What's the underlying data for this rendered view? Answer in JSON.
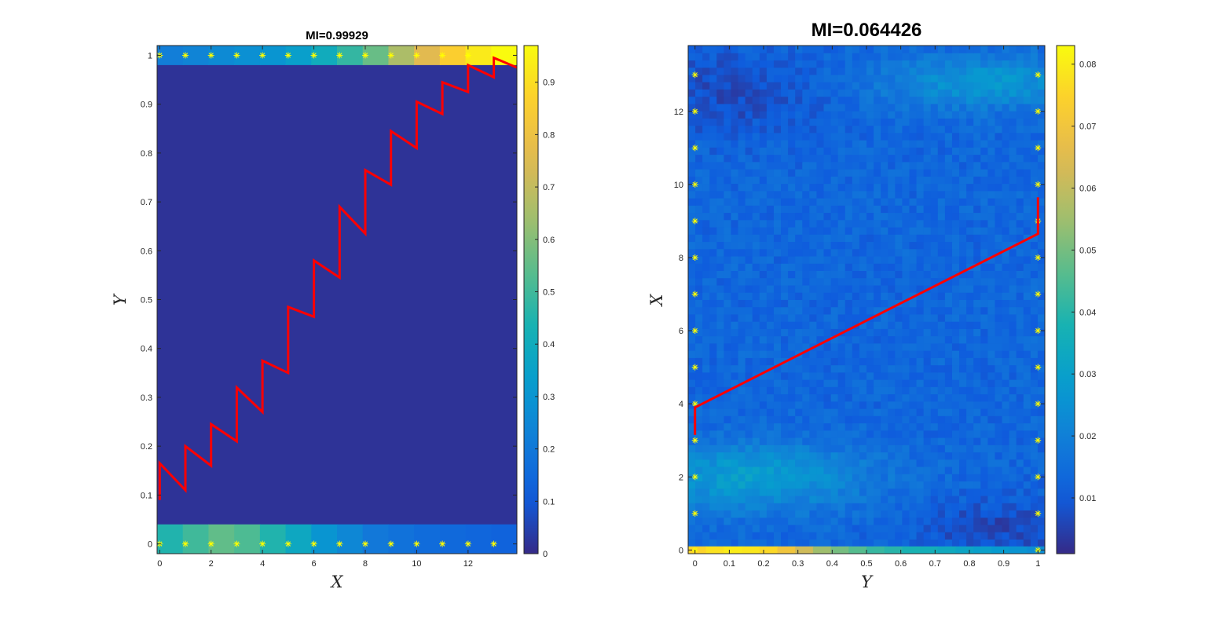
{
  "chart_data": [
    {
      "type": "heatmap",
      "title": "MI=0.99929",
      "xlabel": "X",
      "ylabel": "Y",
      "xlim": [
        -0.1,
        13.9
      ],
      "ylim": [
        -0.02,
        1.02
      ],
      "xticks": [
        0,
        2,
        4,
        6,
        8,
        10,
        12
      ],
      "yticks": [
        0,
        0.1,
        0.2,
        0.3,
        0.4,
        0.5,
        0.6,
        0.7,
        0.8,
        0.9,
        1
      ],
      "colorbar": {
        "min": 0,
        "max": 0.97,
        "ticks": [
          0,
          0.1,
          0.2,
          0.3,
          0.4,
          0.5,
          0.6,
          0.7,
          0.8,
          0.9
        ]
      },
      "background_value": 0.02,
      "top_band": {
        "y_from": 0.98,
        "y_to": 1.02,
        "values": [
          0.22,
          0.24,
          0.26,
          0.28,
          0.3,
          0.34,
          0.4,
          0.48,
          0.56,
          0.66,
          0.76,
          0.86,
          0.93,
          0.97
        ]
      },
      "bottom_band": {
        "y_from": -0.02,
        "y_to": 0.04,
        "values": [
          0.45,
          0.5,
          0.55,
          0.52,
          0.45,
          0.38,
          0.3,
          0.25,
          0.2,
          0.18,
          0.16,
          0.15,
          0.14,
          0.13
        ]
      },
      "markers_top": [
        0,
        1,
        2,
        3,
        4,
        5,
        6,
        7,
        8,
        9,
        10,
        11,
        12,
        13
      ],
      "markers_bottom": [
        0,
        1,
        2,
        3,
        4,
        5,
        6,
        7,
        8,
        9,
        10,
        11,
        12,
        13
      ],
      "path": [
        [
          0,
          0.09
        ],
        [
          0,
          0.165
        ],
        [
          1,
          0.11
        ],
        [
          1,
          0.2
        ],
        [
          2,
          0.16
        ],
        [
          2,
          0.245
        ],
        [
          3,
          0.21
        ],
        [
          3,
          0.32
        ],
        [
          4,
          0.27
        ],
        [
          4,
          0.375
        ],
        [
          5,
          0.35
        ],
        [
          5,
          0.485
        ],
        [
          6,
          0.465
        ],
        [
          6,
          0.58
        ],
        [
          7,
          0.545
        ],
        [
          7,
          0.69
        ],
        [
          8,
          0.635
        ],
        [
          8,
          0.765
        ],
        [
          9,
          0.735
        ],
        [
          9,
          0.845
        ],
        [
          10,
          0.81
        ],
        [
          10,
          0.905
        ],
        [
          11,
          0.88
        ],
        [
          11,
          0.945
        ],
        [
          12,
          0.925
        ],
        [
          12,
          0.98
        ],
        [
          13,
          0.955
        ],
        [
          13,
          0.995
        ],
        [
          13.9,
          0.975
        ]
      ],
      "path_color": "#ff0000"
    },
    {
      "type": "heatmap",
      "title": "MI=0.064426",
      "xlabel": "Y",
      "ylabel": "X",
      "xlim": [
        -0.02,
        1.02
      ],
      "ylim": [
        -0.1,
        13.8
      ],
      "xticks": [
        0,
        0.1,
        0.2,
        0.3,
        0.4,
        0.5,
        0.6,
        0.7,
        0.8,
        0.9,
        1
      ],
      "yticks": [
        0,
        2,
        4,
        6,
        8,
        10,
        12
      ],
      "colorbar": {
        "min": 0.001,
        "max": 0.083,
        "ticks": [
          0.01,
          0.02,
          0.03,
          0.04,
          0.05,
          0.06,
          0.07,
          0.08
        ]
      },
      "grid": {
        "cols": 50,
        "rows": 69
      },
      "bottom_band": {
        "y_from": -0.1,
        "y_to": 0.1,
        "values": [
          0.075,
          0.078,
          0.08,
          0.079,
          0.076,
          0.07,
          0.062,
          0.055,
          0.05,
          0.046,
          0.042,
          0.04,
          0.038,
          0.036,
          0.034,
          0.032,
          0.03,
          0.028,
          0.026,
          0.024
        ]
      },
      "markers_left": [
        0,
        1,
        2,
        3,
        4,
        5,
        6,
        7,
        8,
        9,
        10,
        11,
        12,
        13
      ],
      "markers_right": [
        0,
        1,
        2,
        3,
        4,
        5,
        6,
        7,
        8,
        9,
        10,
        11,
        12,
        13
      ],
      "path": [
        [
          0,
          3.15
        ],
        [
          0,
          3.9
        ],
        [
          1,
          8.65
        ],
        [
          1,
          9.65
        ]
      ],
      "path_color": "#ff0000"
    }
  ]
}
